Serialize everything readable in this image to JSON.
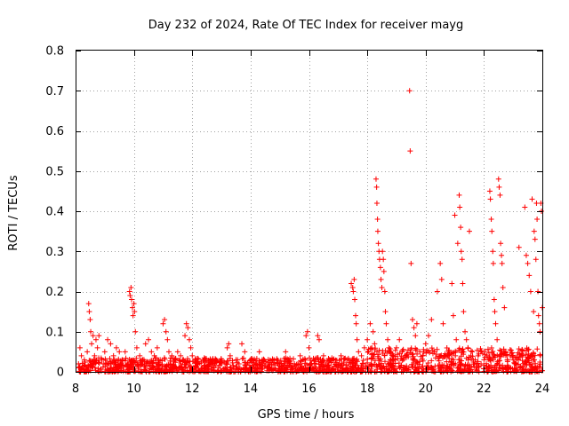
{
  "chart_data": {
    "type": "scatter",
    "title": "Day 232 of 2024, Rate Of TEC Index for receiver mayg",
    "xlabel": "GPS time / hours",
    "ylabel": "ROTI / TECUs",
    "xlim": [
      8,
      24
    ],
    "ylim": [
      0,
      0.8
    ],
    "x_ticks": [
      8,
      10,
      12,
      14,
      16,
      18,
      20,
      22,
      24
    ],
    "y_ticks": [
      0,
      0.1,
      0.2,
      0.3,
      0.4,
      0.5,
      0.6,
      0.7,
      0.8
    ],
    "grid": true,
    "marker": "+",
    "color": "#ff0000",
    "series": [
      {
        "name": "ROTI",
        "points": [
          [
            8.1,
            0.02
          ],
          [
            8.15,
            0.06
          ],
          [
            8.2,
            0.04
          ],
          [
            8.3,
            0.03
          ],
          [
            8.4,
            0.05
          ],
          [
            8.45,
            0.17
          ],
          [
            8.47,
            0.15
          ],
          [
            8.5,
            0.13
          ],
          [
            8.52,
            0.1
          ],
          [
            8.55,
            0.07
          ],
          [
            8.6,
            0.09
          ],
          [
            8.65,
            0.04
          ],
          [
            8.7,
            0.08
          ],
          [
            8.75,
            0.06
          ],
          [
            8.8,
            0.09
          ],
          [
            8.9,
            0.03
          ],
          [
            9.0,
            0.05
          ],
          [
            9.1,
            0.08
          ],
          [
            9.2,
            0.07
          ],
          [
            9.3,
            0.04
          ],
          [
            9.4,
            0.06
          ],
          [
            9.5,
            0.05
          ],
          [
            9.6,
            0.03
          ],
          [
            9.7,
            0.05
          ],
          [
            9.8,
            0.02
          ],
          [
            9.85,
            0.2
          ],
          [
            9.87,
            0.19
          ],
          [
            9.9,
            0.21
          ],
          [
            9.92,
            0.18
          ],
          [
            9.95,
            0.16
          ],
          [
            9.97,
            0.14
          ],
          [
            10.0,
            0.17
          ],
          [
            10.02,
            0.15
          ],
          [
            10.05,
            0.1
          ],
          [
            10.1,
            0.06
          ],
          [
            10.2,
            0.04
          ],
          [
            10.3,
            0.03
          ],
          [
            10.4,
            0.07
          ],
          [
            10.5,
            0.08
          ],
          [
            10.6,
            0.05
          ],
          [
            10.7,
            0.04
          ],
          [
            10.8,
            0.06
          ],
          [
            10.9,
            0.03
          ],
          [
            11.0,
            0.12
          ],
          [
            11.05,
            0.13
          ],
          [
            11.1,
            0.1
          ],
          [
            11.15,
            0.08
          ],
          [
            11.2,
            0.05
          ],
          [
            11.3,
            0.04
          ],
          [
            11.4,
            0.03
          ],
          [
            11.5,
            0.05
          ],
          [
            11.6,
            0.04
          ],
          [
            11.7,
            0.03
          ],
          [
            11.75,
            0.09
          ],
          [
            11.8,
            0.12
          ],
          [
            11.85,
            0.11
          ],
          [
            11.9,
            0.08
          ],
          [
            11.95,
            0.06
          ],
          [
            12.0,
            0.04
          ],
          [
            12.1,
            0.03
          ],
          [
            12.2,
            0.02
          ],
          [
            12.4,
            0.03
          ],
          [
            12.6,
            0.02
          ],
          [
            12.8,
            0.03
          ],
          [
            13.0,
            0.02
          ],
          [
            13.2,
            0.06
          ],
          [
            13.25,
            0.07
          ],
          [
            13.3,
            0.04
          ],
          [
            13.5,
            0.03
          ],
          [
            13.6,
            0.02
          ],
          [
            13.7,
            0.07
          ],
          [
            13.8,
            0.05
          ],
          [
            14.0,
            0.03
          ],
          [
            14.2,
            0.02
          ],
          [
            14.3,
            0.05
          ],
          [
            14.4,
            0.03
          ],
          [
            14.6,
            0.02
          ],
          [
            14.8,
            0.03
          ],
          [
            15.0,
            0.02
          ],
          [
            15.2,
            0.05
          ],
          [
            15.3,
            0.03
          ],
          [
            15.5,
            0.02
          ],
          [
            15.7,
            0.04
          ],
          [
            15.8,
            0.03
          ],
          [
            15.9,
            0.09
          ],
          [
            15.95,
            0.1
          ],
          [
            16.0,
            0.06
          ],
          [
            16.2,
            0.03
          ],
          [
            16.3,
            0.09
          ],
          [
            16.35,
            0.08
          ],
          [
            16.5,
            0.04
          ],
          [
            16.7,
            0.03
          ],
          [
            16.9,
            0.02
          ],
          [
            17.1,
            0.04
          ],
          [
            17.3,
            0.03
          ],
          [
            17.45,
            0.22
          ],
          [
            17.5,
            0.21
          ],
          [
            17.52,
            0.2
          ],
          [
            17.55,
            0.23
          ],
          [
            17.57,
            0.18
          ],
          [
            17.6,
            0.14
          ],
          [
            17.62,
            0.12
          ],
          [
            17.65,
            0.08
          ],
          [
            17.7,
            0.05
          ],
          [
            17.8,
            0.04
          ],
          [
            17.9,
            0.06
          ],
          [
            18.0,
            0.08
          ],
          [
            18.1,
            0.12
          ],
          [
            18.2,
            0.1
          ],
          [
            18.25,
            0.07
          ],
          [
            18.3,
            0.48
          ],
          [
            18.32,
            0.46
          ],
          [
            18.33,
            0.42
          ],
          [
            18.35,
            0.38
          ],
          [
            18.36,
            0.35
          ],
          [
            18.38,
            0.32
          ],
          [
            18.4,
            0.3
          ],
          [
            18.42,
            0.28
          ],
          [
            18.45,
            0.26
          ],
          [
            18.47,
            0.23
          ],
          [
            18.5,
            0.21
          ],
          [
            18.52,
            0.3
          ],
          [
            18.55,
            0.28
          ],
          [
            18.57,
            0.25
          ],
          [
            18.6,
            0.2
          ],
          [
            18.62,
            0.15
          ],
          [
            18.65,
            0.12
          ],
          [
            18.7,
            0.08
          ],
          [
            18.8,
            0.05
          ],
          [
            18.9,
            0.04
          ],
          [
            19.0,
            0.06
          ],
          [
            19.1,
            0.08
          ],
          [
            19.2,
            0.05
          ],
          [
            19.3,
            0.04
          ],
          [
            19.45,
            0.7
          ],
          [
            19.47,
            0.55
          ],
          [
            19.5,
            0.27
          ],
          [
            19.55,
            0.13
          ],
          [
            19.6,
            0.11
          ],
          [
            19.65,
            0.09
          ],
          [
            19.7,
            0.12
          ],
          [
            19.8,
            0.05
          ],
          [
            19.9,
            0.04
          ],
          [
            20.0,
            0.07
          ],
          [
            20.1,
            0.09
          ],
          [
            20.2,
            0.13
          ],
          [
            20.3,
            0.05
          ],
          [
            20.4,
            0.2
          ],
          [
            20.5,
            0.27
          ],
          [
            20.55,
            0.23
          ],
          [
            20.6,
            0.12
          ],
          [
            20.7,
            0.04
          ],
          [
            20.8,
            0.05
          ],
          [
            20.9,
            0.22
          ],
          [
            20.95,
            0.14
          ],
          [
            21.0,
            0.39
          ],
          [
            21.05,
            0.08
          ],
          [
            21.1,
            0.32
          ],
          [
            21.15,
            0.44
          ],
          [
            21.17,
            0.41
          ],
          [
            21.2,
            0.36
          ],
          [
            21.22,
            0.3
          ],
          [
            21.25,
            0.28
          ],
          [
            21.27,
            0.22
          ],
          [
            21.3,
            0.15
          ],
          [
            21.35,
            0.1
          ],
          [
            21.4,
            0.08
          ],
          [
            21.45,
            0.06
          ],
          [
            21.5,
            0.35
          ],
          [
            21.55,
            0.04
          ],
          [
            21.6,
            0.05
          ],
          [
            21.7,
            0.03
          ],
          [
            21.8,
            0.04
          ],
          [
            21.9,
            0.02
          ],
          [
            22.0,
            0.03
          ],
          [
            22.1,
            0.04
          ],
          [
            22.2,
            0.45
          ],
          [
            22.22,
            0.43
          ],
          [
            22.25,
            0.38
          ],
          [
            22.27,
            0.35
          ],
          [
            22.3,
            0.3
          ],
          [
            22.32,
            0.27
          ],
          [
            22.35,
            0.18
          ],
          [
            22.37,
            0.15
          ],
          [
            22.4,
            0.12
          ],
          [
            22.45,
            0.08
          ],
          [
            22.5,
            0.48
          ],
          [
            22.52,
            0.46
          ],
          [
            22.55,
            0.44
          ],
          [
            22.57,
            0.32
          ],
          [
            22.6,
            0.29
          ],
          [
            22.62,
            0.27
          ],
          [
            22.65,
            0.21
          ],
          [
            22.7,
            0.16
          ],
          [
            22.75,
            0.05
          ],
          [
            22.8,
            0.03
          ],
          [
            22.9,
            0.04
          ],
          [
            23.0,
            0.03
          ],
          [
            23.1,
            0.02
          ],
          [
            23.2,
            0.31
          ],
          [
            23.3,
            0.04
          ],
          [
            23.4,
            0.41
          ],
          [
            23.45,
            0.29
          ],
          [
            23.5,
            0.27
          ],
          [
            23.55,
            0.24
          ],
          [
            23.6,
            0.2
          ],
          [
            23.65,
            0.43
          ],
          [
            23.7,
            0.15
          ],
          [
            23.72,
            0.35
          ],
          [
            23.75,
            0.33
          ],
          [
            23.78,
            0.28
          ],
          [
            23.8,
            0.42
          ],
          [
            23.82,
            0.38
          ],
          [
            23.85,
            0.2
          ],
          [
            23.87,
            0.14
          ],
          [
            23.9,
            0.12
          ],
          [
            23.92,
            0.1
          ],
          [
            23.95,
            0.42
          ],
          [
            23.97,
            0.4
          ],
          [
            24.0,
            0.16
          ]
        ]
      }
    ]
  }
}
